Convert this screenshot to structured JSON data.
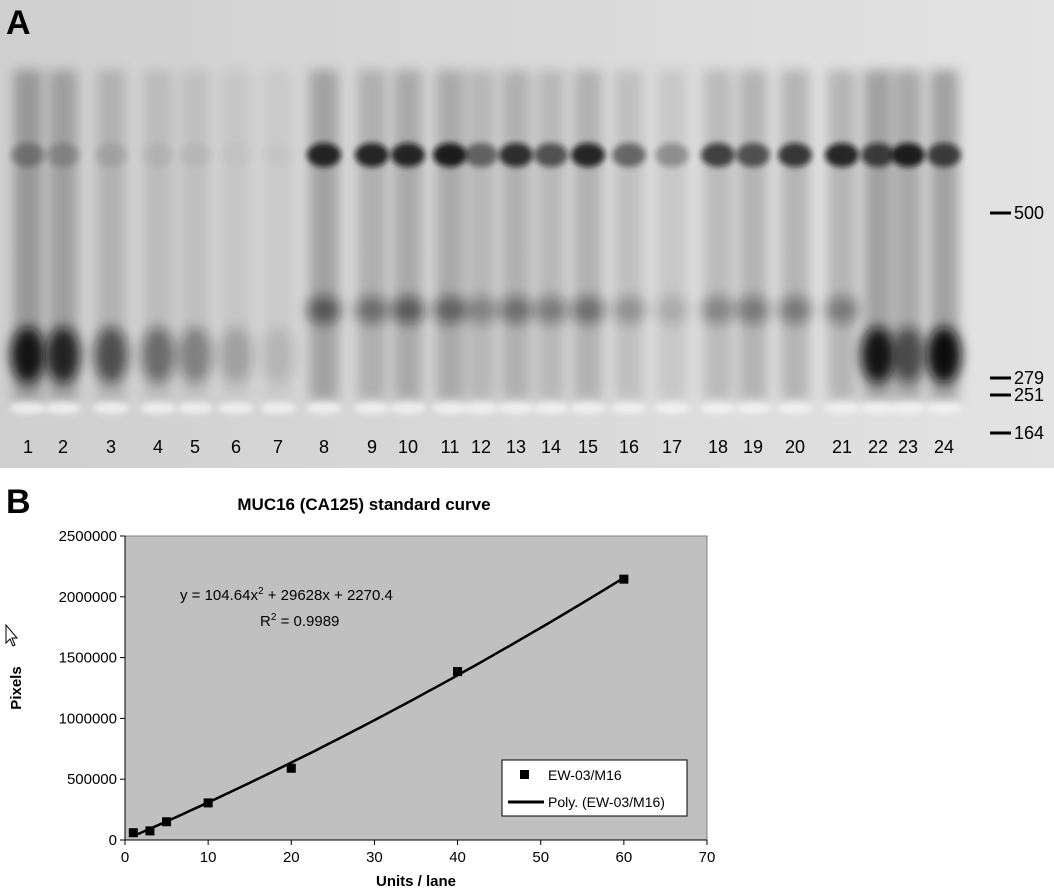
{
  "panels": {
    "a": "A",
    "b": "B"
  },
  "gel": {
    "lanes": [
      1,
      2,
      3,
      4,
      5,
      6,
      7,
      8,
      9,
      10,
      11,
      12,
      13,
      14,
      15,
      16,
      17,
      18,
      19,
      20,
      21,
      22,
      23,
      24
    ],
    "markers": [
      500,
      279,
      251,
      164
    ]
  },
  "chart_data": {
    "type": "scatter",
    "title": "MUC16 (CA125) standard curve",
    "x_label": "Units / lane",
    "y_label": "Pixels",
    "x": [
      1,
      3,
      5,
      10,
      20,
      40,
      60
    ],
    "series": [
      {
        "name": "EW-03/M16",
        "color": "#000000",
        "values": [
          60000,
          75000,
          150000,
          305000,
          590000,
          1385000,
          2145000
        ]
      }
    ],
    "trendline": {
      "name": "Poly. (EW-03/M16)",
      "color": "#000000",
      "coefficients": [
        104.64,
        29628,
        2270.4
      ],
      "equation_text": [
        "y = 104.64x",
        "2",
        " + 29628x + 2270.4"
      ],
      "r2_text": [
        "R",
        "2",
        " = 0.9989"
      ]
    },
    "xlim": [
      0,
      70
    ],
    "xticks": [
      0,
      10,
      20,
      30,
      40,
      50,
      60,
      70
    ],
    "ylim": [
      0,
      2500000
    ],
    "yticks": [
      0,
      500000,
      1000000,
      1500000,
      2000000,
      2500000
    ],
    "background": "#c0c0c0",
    "legend": "lower right"
  }
}
